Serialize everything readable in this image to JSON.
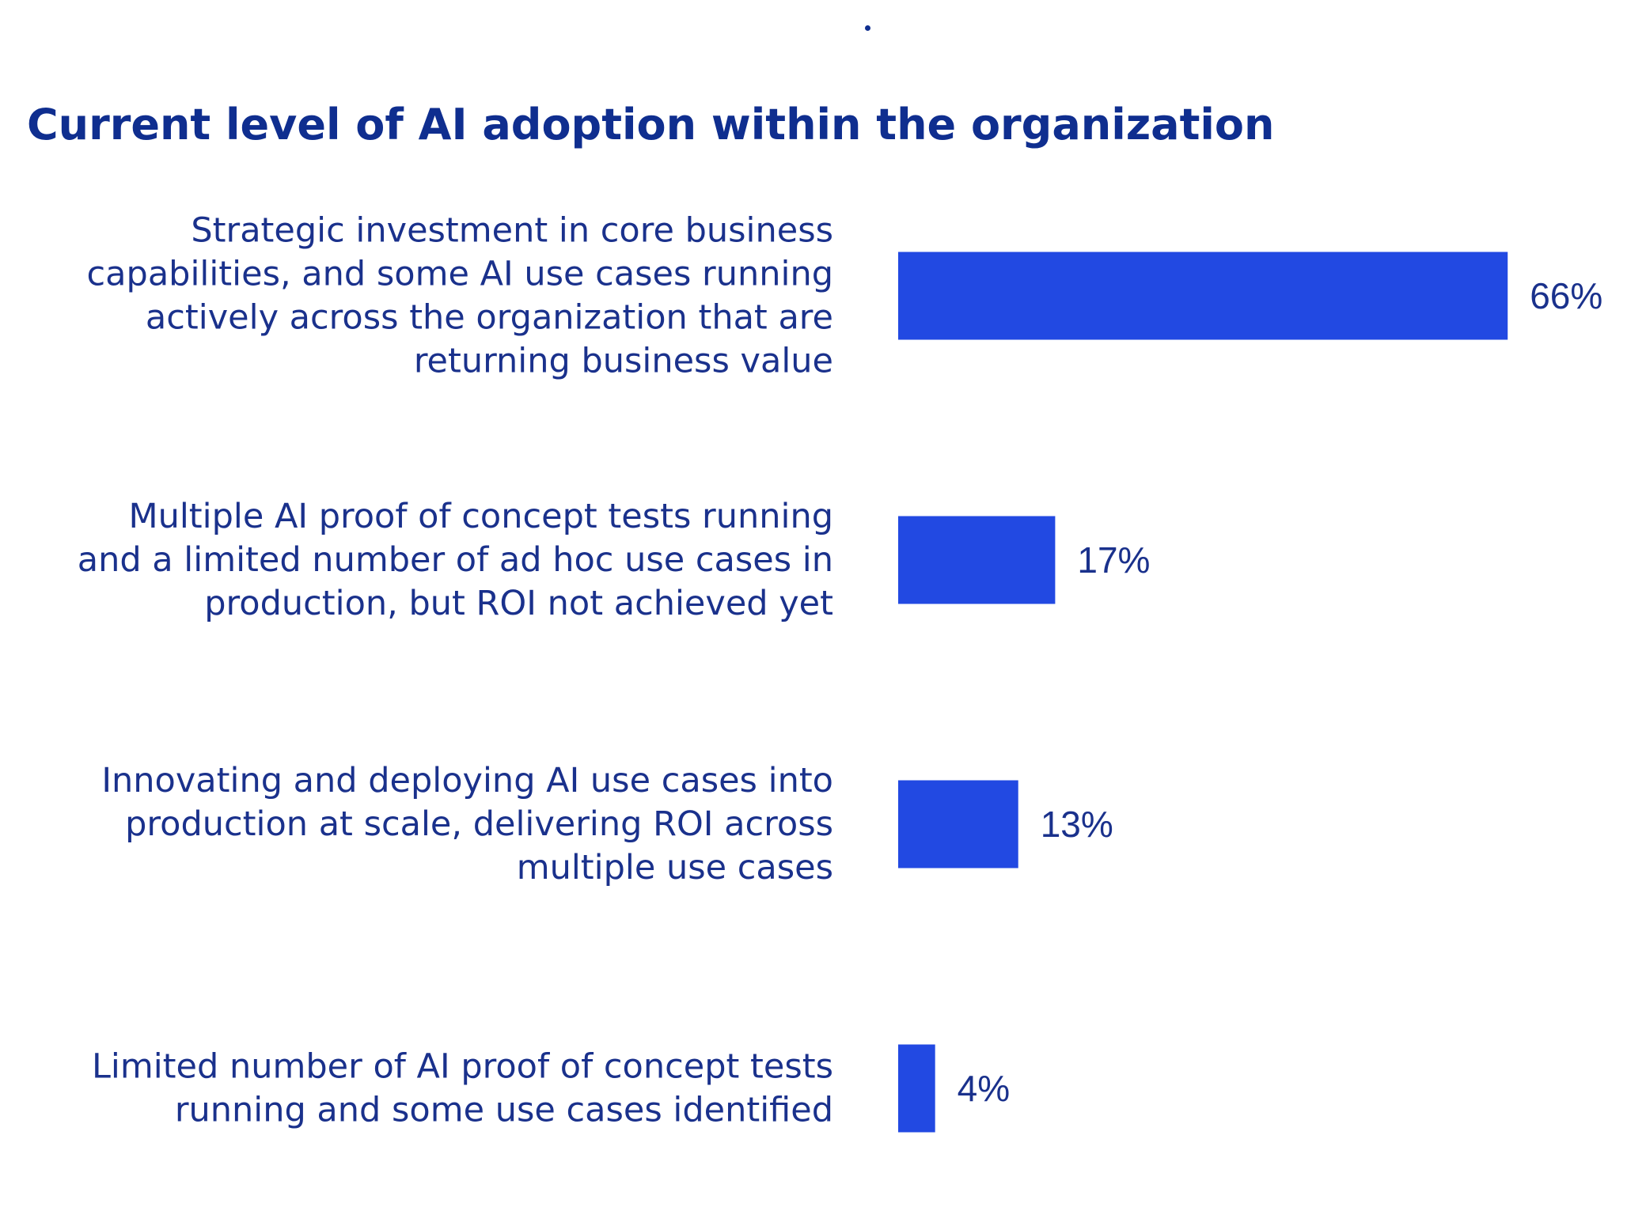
{
  "colors": {
    "bar": "#2249e2",
    "label_text": "#1a318c",
    "title_text": "#0f2e8f",
    "value_text": "#1a318c"
  },
  "chart_data": {
    "type": "bar",
    "orientation": "horizontal",
    "title": "Current level of AI adoption within the organization",
    "categories": [
      [
        "Strategic investment in core business",
        "capabilities, and some AI use cases running",
        "actively across the organization that are",
        "returning business value"
      ],
      [
        "Multiple AI proof of concept tests running",
        "and a limited number of ad hoc use cases in",
        "production, but ROI not achieved yet"
      ],
      [
        "Innovating and deploying AI use cases into",
        "production at scale, delivering ROI across",
        "multiple use cases"
      ],
      [
        "Limited number of AI proof of concept tests",
        "running and some use cases identified"
      ]
    ],
    "values": [
      66,
      17,
      13,
      4
    ],
    "value_labels": [
      "66%",
      "17%",
      "13%",
      "4%"
    ],
    "unit": "%",
    "xlim": [
      0,
      100
    ],
    "grid": false,
    "axes_visible": false,
    "legend": "none"
  }
}
